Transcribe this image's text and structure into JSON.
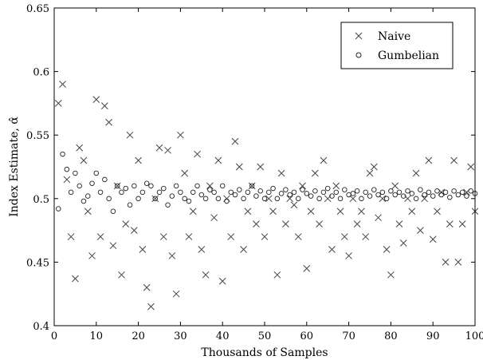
{
  "chart_data": {
    "type": "scatter",
    "title": "",
    "xlabel": "Thousands of Samples",
    "ylabel": "Index Estimate, α̂",
    "xlim": [
      0,
      100
    ],
    "ylim": [
      0.4,
      0.65
    ],
    "xticks": [
      0,
      10,
      20,
      30,
      40,
      50,
      60,
      70,
      80,
      90,
      100
    ],
    "yticks": [
      0.4,
      0.45,
      0.5,
      0.55,
      0.6,
      0.65
    ],
    "ytick_labels": [
      "0.4",
      "0.45",
      "0.5",
      "0.55",
      "0.6",
      "0.65"
    ],
    "grid": false,
    "legend_position": "top-right",
    "series": [
      {
        "name": "Naive",
        "marker": "x",
        "color": "#444444",
        "x": [
          1,
          2,
          3,
          4,
          5,
          6,
          7,
          8,
          9,
          10,
          11,
          12,
          13,
          14,
          15,
          16,
          17,
          18,
          19,
          20,
          21,
          22,
          23,
          24,
          25,
          26,
          27,
          28,
          29,
          30,
          31,
          32,
          33,
          34,
          35,
          36,
          37,
          38,
          39,
          40,
          41,
          42,
          43,
          44,
          45,
          46,
          47,
          48,
          49,
          50,
          51,
          52,
          53,
          54,
          55,
          56,
          57,
          58,
          59,
          60,
          61,
          62,
          63,
          64,
          65,
          66,
          67,
          68,
          69,
          70,
          71,
          72,
          73,
          74,
          75,
          76,
          77,
          78,
          79,
          80,
          81,
          82,
          83,
          84,
          85,
          86,
          87,
          88,
          89,
          90,
          91,
          92,
          93,
          94,
          95,
          96,
          97,
          98,
          99,
          100
        ],
        "y": [
          0.575,
          0.59,
          0.515,
          0.47,
          0.437,
          0.54,
          0.53,
          0.49,
          0.455,
          0.578,
          0.47,
          0.573,
          0.56,
          0.463,
          0.51,
          0.44,
          0.48,
          0.55,
          0.475,
          0.53,
          0.46,
          0.43,
          0.415,
          0.5,
          0.54,
          0.47,
          0.538,
          0.455,
          0.425,
          0.55,
          0.52,
          0.47,
          0.49,
          0.535,
          0.46,
          0.44,
          0.51,
          0.485,
          0.53,
          0.435,
          0.5,
          0.47,
          0.545,
          0.525,
          0.46,
          0.49,
          0.51,
          0.48,
          0.525,
          0.47,
          0.5,
          0.49,
          0.44,
          0.52,
          0.48,
          0.5,
          0.495,
          0.47,
          0.51,
          0.445,
          0.49,
          0.52,
          0.48,
          0.53,
          0.5,
          0.46,
          0.51,
          0.49,
          0.47,
          0.455,
          0.5,
          0.48,
          0.49,
          0.47,
          0.52,
          0.525,
          0.485,
          0.5,
          0.46,
          0.44,
          0.51,
          0.48,
          0.465,
          0.5,
          0.49,
          0.52,
          0.475,
          0.5,
          0.53,
          0.468,
          0.49,
          0.505,
          0.45,
          0.48,
          0.53,
          0.45,
          0.48,
          0.505,
          0.525,
          0.49
        ]
      },
      {
        "name": "Gumbelian",
        "marker": "o",
        "color": "#222222",
        "x": [
          1,
          2,
          3,
          4,
          5,
          6,
          7,
          8,
          9,
          10,
          11,
          12,
          13,
          14,
          15,
          16,
          17,
          18,
          19,
          20,
          21,
          22,
          23,
          24,
          25,
          26,
          27,
          28,
          29,
          30,
          31,
          32,
          33,
          34,
          35,
          36,
          37,
          38,
          39,
          40,
          41,
          42,
          43,
          44,
          45,
          46,
          47,
          48,
          49,
          50,
          51,
          52,
          53,
          54,
          55,
          56,
          57,
          58,
          59,
          60,
          61,
          62,
          63,
          64,
          65,
          66,
          67,
          68,
          69,
          70,
          71,
          72,
          73,
          74,
          75,
          76,
          77,
          78,
          79,
          80,
          81,
          82,
          83,
          84,
          85,
          86,
          87,
          88,
          89,
          90,
          91,
          92,
          93,
          94,
          95,
          96,
          97,
          98,
          99,
          100
        ],
        "y": [
          0.492,
          0.535,
          0.523,
          0.505,
          0.52,
          0.51,
          0.498,
          0.502,
          0.512,
          0.52,
          0.505,
          0.515,
          0.5,
          0.49,
          0.51,
          0.505,
          0.508,
          0.495,
          0.51,
          0.5,
          0.505,
          0.512,
          0.51,
          0.5,
          0.505,
          0.508,
          0.495,
          0.502,
          0.51,
          0.505,
          0.5,
          0.498,
          0.505,
          0.51,
          0.503,
          0.5,
          0.507,
          0.505,
          0.5,
          0.51,
          0.498,
          0.505,
          0.503,
          0.507,
          0.5,
          0.505,
          0.51,
          0.502,
          0.506,
          0.5,
          0.505,
          0.508,
          0.5,
          0.504,
          0.507,
          0.503,
          0.505,
          0.5,
          0.507,
          0.504,
          0.502,
          0.506,
          0.5,
          0.505,
          0.508,
          0.502,
          0.505,
          0.5,
          0.507,
          0.503,
          0.504,
          0.506,
          0.5,
          0.505,
          0.502,
          0.507,
          0.503,
          0.505,
          0.5,
          0.506,
          0.503,
          0.505,
          0.502,
          0.506,
          0.504,
          0.5,
          0.507,
          0.503,
          0.505,
          0.502,
          0.506,
          0.503,
          0.505,
          0.501,
          0.506,
          0.503,
          0.505,
          0.502,
          0.506,
          0.504
        ]
      }
    ]
  }
}
